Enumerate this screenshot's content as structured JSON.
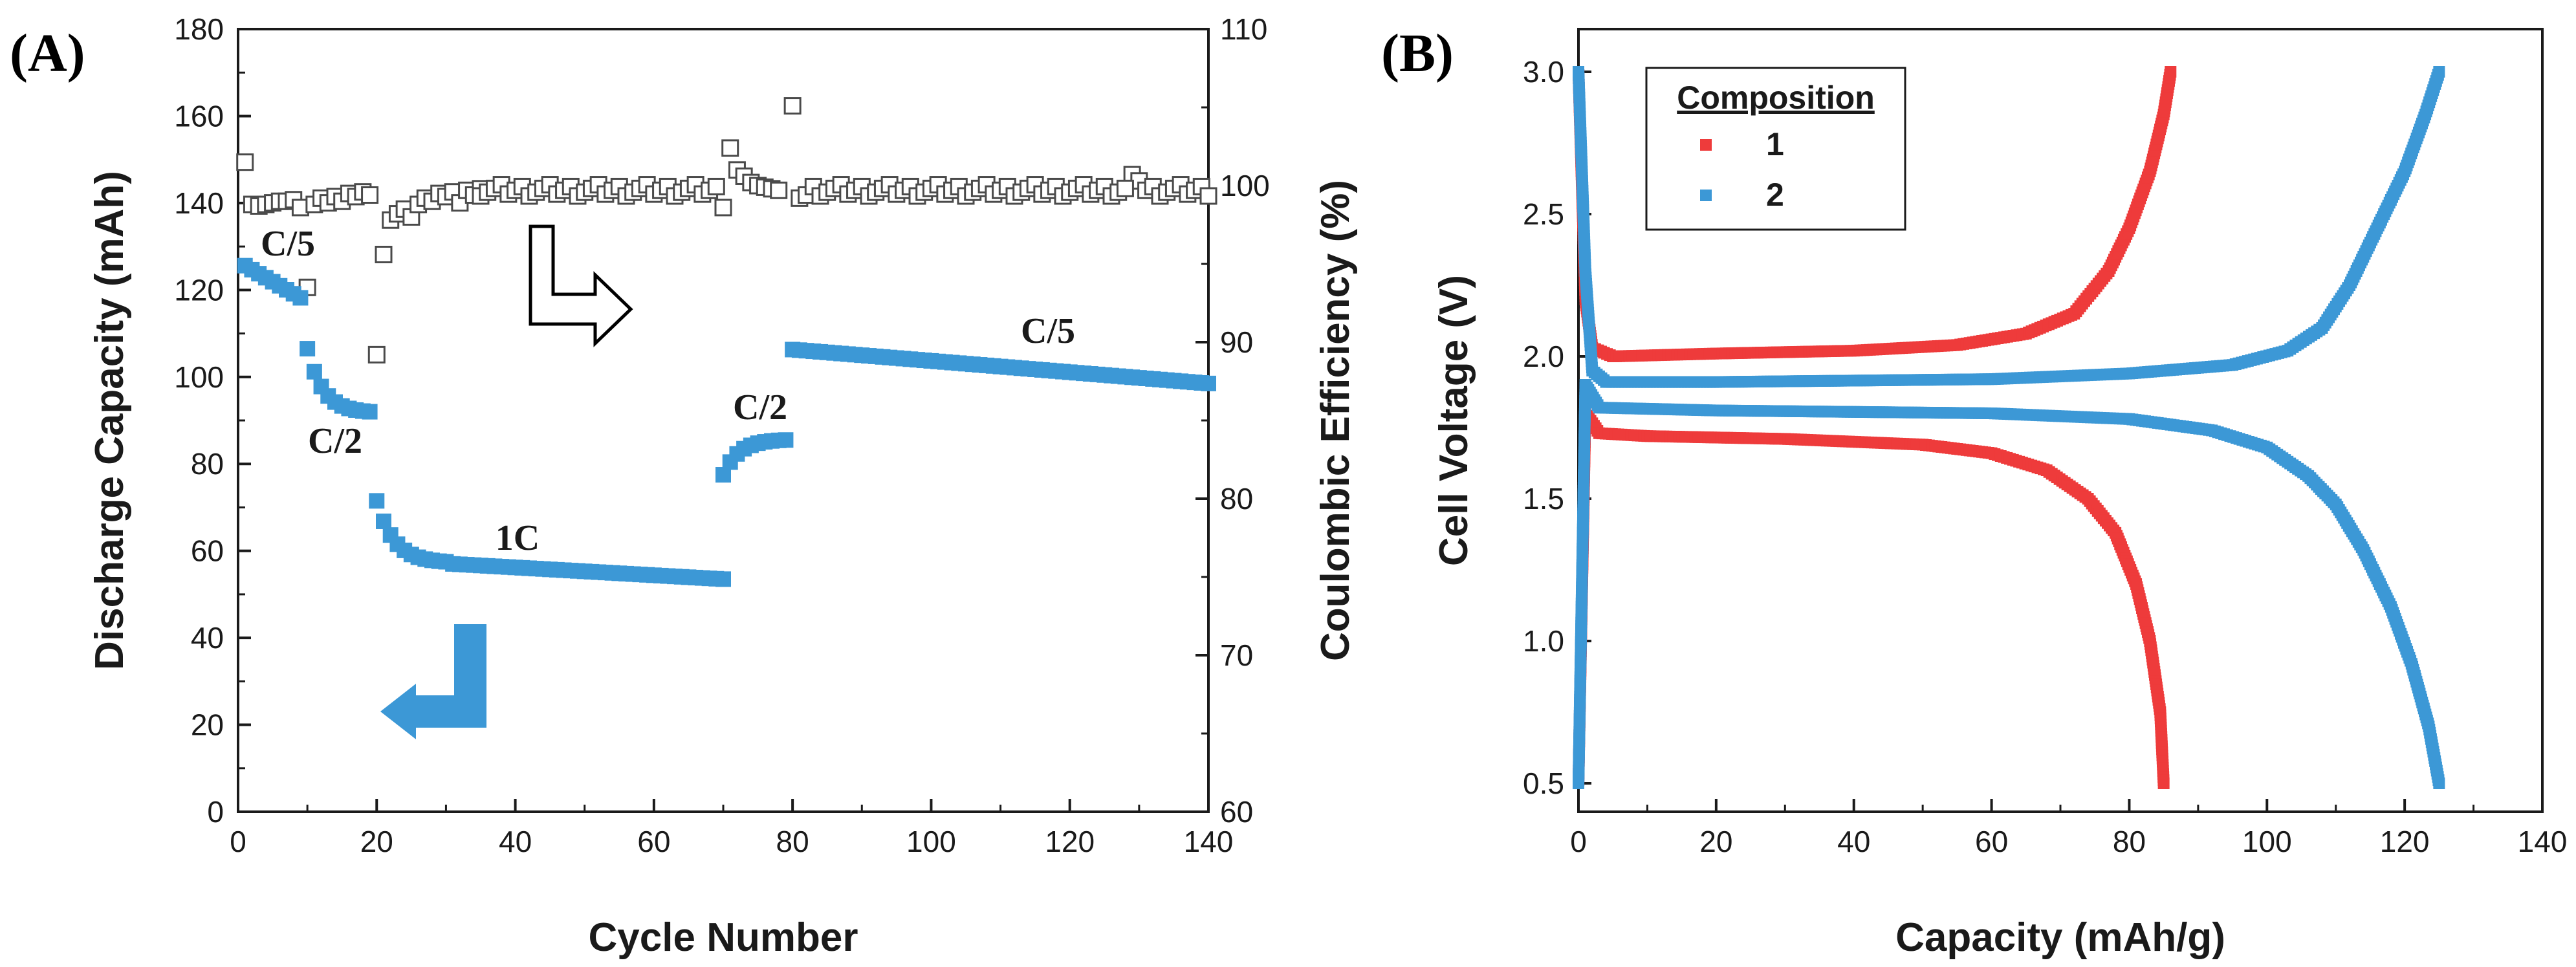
{
  "colors": {
    "red": "#ee3b3b",
    "blue": "#3c98d6",
    "axis": "#1a1a1a",
    "open": "#4a4a4a"
  },
  "chart_data": [
    {
      "panel": "(A)",
      "type": "scatter",
      "xlabel": "Cycle Number",
      "ylabel": "Discharge Capacity (mAh)",
      "y2label": "Coulombic Efficiency (%)",
      "xlim": [
        0,
        140
      ],
      "ylim": [
        0,
        180
      ],
      "y2lim": [
        60,
        110
      ],
      "xticks": [
        "0",
        "20",
        "40",
        "60",
        "80",
        "100",
        "120",
        "140"
      ],
      "yticks": [
        "0",
        "20",
        "40",
        "60",
        "80",
        "100",
        "120",
        "140",
        "160",
        "180"
      ],
      "y2ticks": [
        "60",
        "70",
        "80",
        "90",
        "100",
        "110"
      ],
      "series": [
        {
          "name": "Discharge Capacity",
          "axis": "left",
          "marker": "filled-square",
          "segments": [
            {
              "x": [
                1,
                9
              ],
              "y": [
                125.6,
                118.2
              ],
              "shape": "linear"
            },
            {
              "x": [
                10,
                19
              ],
              "y": [
                106.5,
                92
              ],
              "shape": "decay"
            },
            {
              "x": [
                20,
                30
              ],
              "y": [
                71.5,
                57.5
              ],
              "shape": "decay"
            },
            {
              "x": [
                31,
                70
              ],
              "y": [
                57,
                53.5
              ],
              "shape": "flat"
            },
            {
              "x": [
                70,
                79
              ],
              "y": [
                77.5,
                85.5
              ],
              "shape": "rise"
            },
            {
              "x": [
                80,
                140
              ],
              "y": [
                106.3,
                98.5
              ],
              "shape": "linear"
            }
          ]
        },
        {
          "name": "Coulombic Efficiency",
          "axis": "right",
          "marker": "open-square",
          "points": [
            [
              1,
              101.5
            ],
            [
              2,
              98.8
            ],
            [
              3,
              98.7
            ],
            [
              4,
              98.8
            ],
            [
              5,
              98.9
            ],
            [
              6,
              99.0
            ],
            [
              7,
              99.0
            ],
            [
              8,
              99.1
            ],
            [
              9,
              98.6
            ],
            [
              10,
              93.5
            ],
            [
              11,
              98.8
            ],
            [
              12,
              99.2
            ],
            [
              13,
              98.9
            ],
            [
              14,
              99.3
            ],
            [
              15,
              99.0
            ],
            [
              16,
              99.5
            ],
            [
              17,
              99.3
            ],
            [
              18,
              99.6
            ],
            [
              19,
              99.4
            ],
            [
              20,
              89.2
            ],
            [
              21,
              95.6
            ],
            [
              22,
              97.8
            ],
            [
              23,
              98.2
            ],
            [
              24,
              98.5
            ],
            [
              25,
              98.0
            ],
            [
              26,
              98.8
            ],
            [
              27,
              99.2
            ],
            [
              28,
              99.0
            ],
            [
              29,
              99.5
            ],
            [
              30,
              99.3
            ],
            [
              31,
              99.6
            ],
            [
              32,
              98.9
            ],
            [
              33,
              99.7
            ],
            [
              34,
              99.4
            ],
            [
              35,
              99.8
            ],
            [
              70,
              98.6
            ],
            [
              71,
              102.4
            ],
            [
              72,
              101.0
            ],
            [
              73,
              100.6
            ],
            [
              74,
              100.2
            ],
            [
              75,
              100.0
            ],
            [
              76,
              99.9
            ],
            [
              77,
              99.8
            ],
            [
              78,
              99.7
            ],
            [
              80,
              105.1
            ],
            [
              81,
              99.2
            ],
            [
              82,
              99.4
            ],
            [
              129,
              100.7
            ],
            [
              130,
              100.3
            ]
          ],
          "baseline": {
            "x": [
              35,
              140
            ],
            "y": 99.7
          }
        }
      ],
      "annotations": [
        "C/5",
        "C/2",
        "1C",
        "C/2",
        "C/5"
      ],
      "arrows": [
        "open arrow pointing right to right axis",
        "blue arrow pointing left to left axis"
      ]
    },
    {
      "panel": "(B)",
      "type": "line",
      "xlabel": "Capacity (mAh/g)",
      "ylabel": "Cell Voltage (V)",
      "xlim": [
        0,
        140
      ],
      "ylim": [
        0.4,
        3.15
      ],
      "xticks": [
        "0",
        "20",
        "40",
        "60",
        "80",
        "100",
        "120",
        "140"
      ],
      "yticks": [
        "0.5",
        "1.0",
        "1.5",
        "2.0",
        "2.5",
        "3.0"
      ],
      "legend": {
        "title": "Composition",
        "position": "top-left",
        "entries": [
          "1",
          "2"
        ]
      },
      "series": [
        {
          "name": "1",
          "charge": [
            [
              0,
              3.0
            ],
            [
              1,
              2.2
            ],
            [
              2,
              2.03
            ],
            [
              5,
              2.0
            ],
            [
              20,
              2.01
            ],
            [
              40,
              2.02
            ],
            [
              55,
              2.04
            ],
            [
              65,
              2.08
            ],
            [
              72,
              2.15
            ],
            [
              77,
              2.3
            ],
            [
              80,
              2.45
            ],
            [
              83,
              2.65
            ],
            [
              85,
              2.85
            ],
            [
              86,
              3.0
            ]
          ],
          "discharge": [
            [
              0,
              0.5
            ],
            [
              1,
              1.8
            ],
            [
              3,
              1.73
            ],
            [
              10,
              1.72
            ],
            [
              30,
              1.71
            ],
            [
              50,
              1.69
            ],
            [
              60,
              1.66
            ],
            [
              68,
              1.6
            ],
            [
              74,
              1.5
            ],
            [
              78,
              1.38
            ],
            [
              81,
              1.2
            ],
            [
              83,
              1.0
            ],
            [
              84.5,
              0.75
            ],
            [
              85,
              0.5
            ]
          ]
        },
        {
          "name": "2",
          "charge": [
            [
              0,
              3.0
            ],
            [
              1,
              2.3
            ],
            [
              2,
              1.95
            ],
            [
              4,
              1.91
            ],
            [
              20,
              1.91
            ],
            [
              60,
              1.92
            ],
            [
              80,
              1.94
            ],
            [
              95,
              1.97
            ],
            [
              103,
              2.02
            ],
            [
              108,
              2.1
            ],
            [
              112,
              2.25
            ],
            [
              116,
              2.45
            ],
            [
              120,
              2.65
            ],
            [
              123,
              2.85
            ],
            [
              125,
              3.0
            ]
          ],
          "discharge": [
            [
              0,
              0.5
            ],
            [
              1,
              1.9
            ],
            [
              3,
              1.82
            ],
            [
              20,
              1.81
            ],
            [
              60,
              1.8
            ],
            [
              80,
              1.78
            ],
            [
              92,
              1.74
            ],
            [
              100,
              1.68
            ],
            [
              106,
              1.58
            ],
            [
              110,
              1.48
            ],
            [
              114,
              1.32
            ],
            [
              118,
              1.12
            ],
            [
              121,
              0.92
            ],
            [
              123.5,
              0.7
            ],
            [
              125,
              0.5
            ]
          ]
        }
      ]
    }
  ]
}
